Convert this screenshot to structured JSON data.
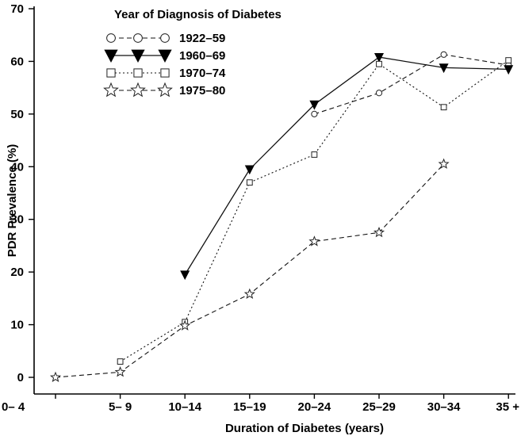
{
  "chart_data": {
    "type": "line",
    "title": "",
    "xlabel": "Duration of Diabetes (years)",
    "ylabel": "PDR Prevalence (%)",
    "ylim": [
      0,
      70
    ],
    "y_ticks": [
      "0",
      "10",
      "20",
      "30",
      "40",
      "50",
      "60",
      "70"
    ],
    "categories": [
      "0– 4",
      "5– 9",
      "10–14",
      "15–19",
      "20–24",
      "25–29",
      "30–34",
      "35 +"
    ],
    "grid": false,
    "legend": {
      "title": "Year of Diagnosis of Diabetes",
      "placement": "top-left"
    },
    "series": [
      {
        "name": "1922–59",
        "marker": "circle",
        "dash": "dashed",
        "values": [
          null,
          null,
          null,
          null,
          50,
          54,
          61.3,
          59.3
        ]
      },
      {
        "name": "1960–69",
        "marker": "triangle-down-filled",
        "dash": "solid",
        "values": [
          null,
          null,
          19.5,
          39.5,
          51.8,
          60.8,
          58.8,
          58.5
        ]
      },
      {
        "name": "1970–74",
        "marker": "square",
        "dash": "dotted",
        "values": [
          null,
          3,
          10.5,
          37,
          42.3,
          59.5,
          51.3,
          60.2
        ]
      },
      {
        "name": "1975–80",
        "marker": "star",
        "dash": "dashed",
        "values": [
          0,
          1,
          9.8,
          15.8,
          25.8,
          27.5,
          40.5,
          null
        ]
      }
    ]
  }
}
